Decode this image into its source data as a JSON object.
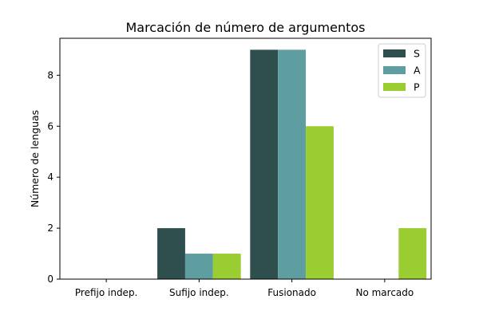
{
  "chart_data": {
    "type": "bar",
    "title": "Marcación de número de argumentos",
    "xlabel": "",
    "ylabel": "Número de lenguas",
    "categories": [
      "Prefijo indep.",
      "Sufijo indep.",
      "Fusionado",
      "No marcado"
    ],
    "series": [
      {
        "name": "S",
        "color": "#2f4f4f",
        "values": [
          0,
          2,
          9,
          0
        ]
      },
      {
        "name": "A",
        "color": "#5f9ea0",
        "values": [
          0,
          1,
          9,
          0
        ]
      },
      {
        "name": "P",
        "color": "#9acd32",
        "values": [
          0,
          1,
          6,
          2
        ]
      }
    ],
    "ylim": [
      0,
      9.45
    ],
    "yticks": [
      0,
      2,
      4,
      6,
      8
    ],
    "grid": false,
    "legend": "top-right"
  }
}
